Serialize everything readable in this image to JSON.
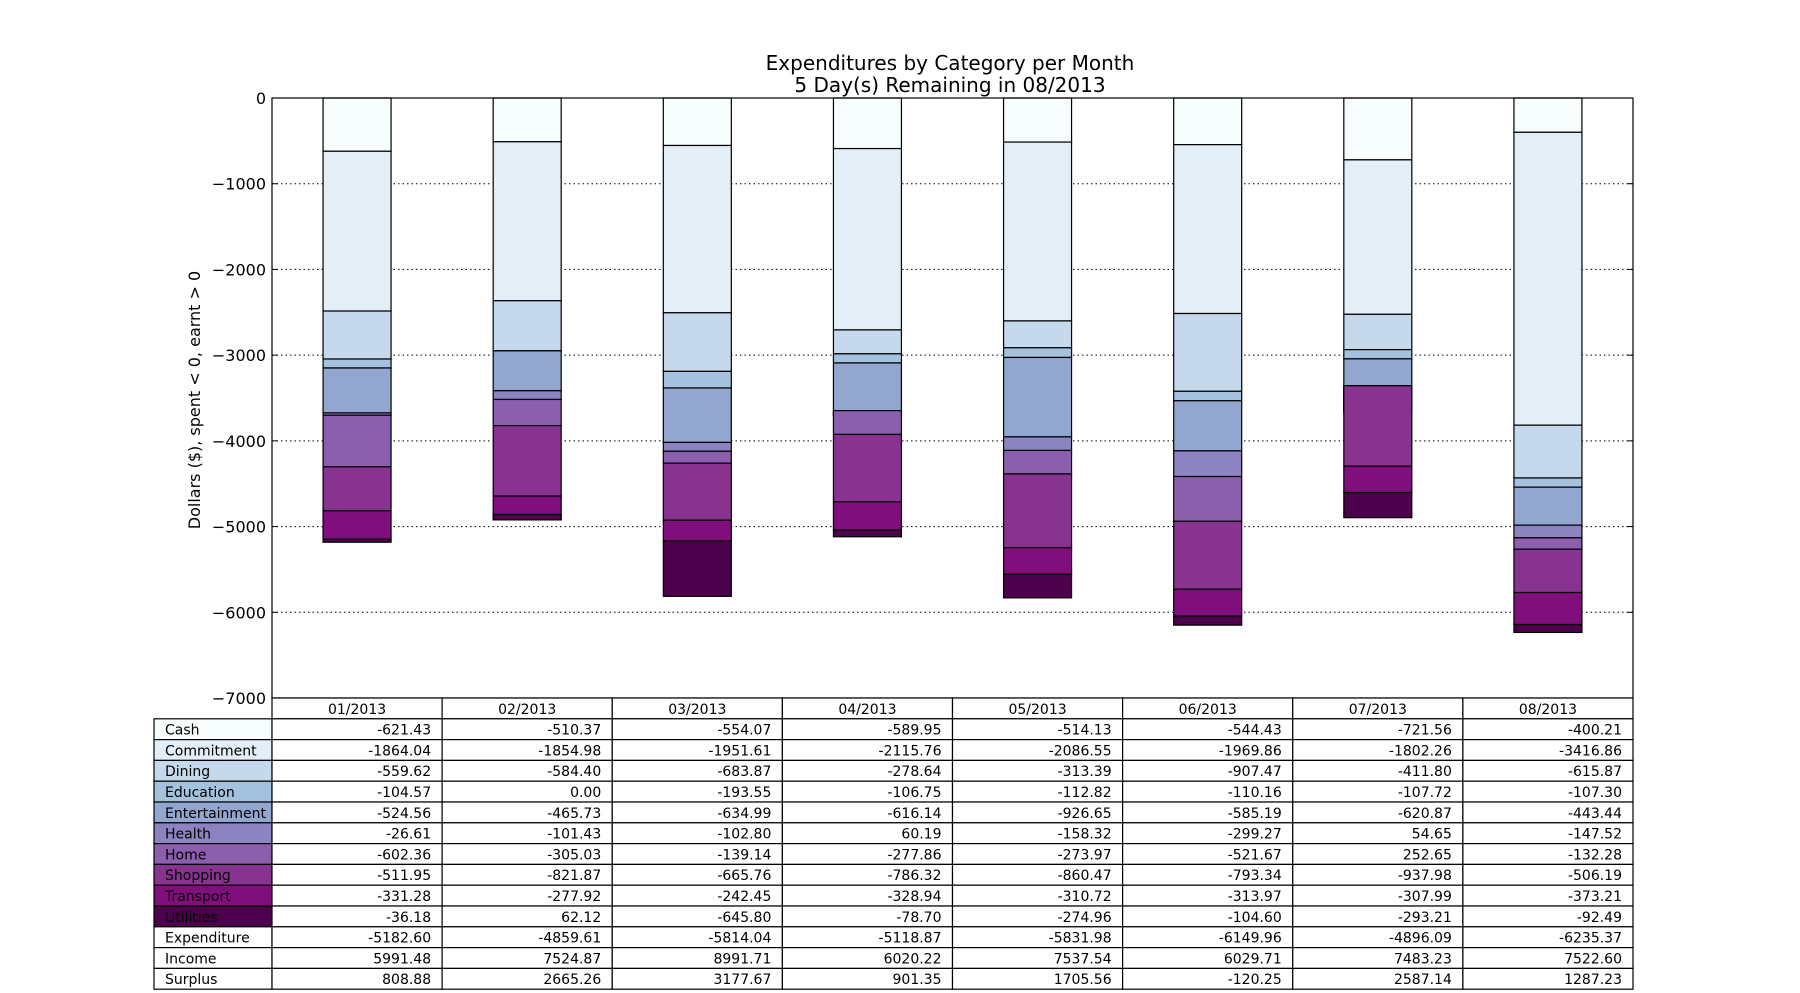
{
  "chart_data": {
    "type": "bar",
    "stacked": true,
    "title": "Expenditures by Category per Month",
    "subtitle": "5 Day(s) Remaining in 08/2013",
    "ylabel": "Dollars ($), spent < 0, earnt > 0",
    "xlabel": "",
    "ylim": [
      -7000,
      0
    ],
    "yticks": [
      0,
      -1000,
      -2000,
      -3000,
      -4000,
      -5000,
      -6000,
      -7000
    ],
    "ytick_labels": [
      "0",
      "−1000",
      "−2000",
      "−3000",
      "−4000",
      "−5000",
      "−6000",
      "−7000"
    ],
    "grid": "dotted-horizontal",
    "categories": [
      "01/2013",
      "02/2013",
      "03/2013",
      "04/2013",
      "05/2013",
      "06/2013",
      "07/2013",
      "08/2013"
    ],
    "series": [
      {
        "name": "Cash",
        "color": "#f7fcfd",
        "values": [
          -621.43,
          -510.37,
          -554.07,
          -589.95,
          -514.13,
          -544.43,
          -721.56,
          -400.21
        ],
        "labels": [
          "-621.43",
          "-510.37",
          "-554.07",
          "-589.95",
          "-514.13",
          "-544.43",
          "-721.56",
          "-400.21"
        ]
      },
      {
        "name": "Commitment",
        "color": "#e3eef6",
        "values": [
          -1864.04,
          -1854.98,
          -1951.61,
          -2115.76,
          -2086.55,
          -1969.86,
          -1802.26,
          -3416.86
        ],
        "labels": [
          "-1864.04",
          "-1854.98",
          "-1951.61",
          "-2115.76",
          "-2086.55",
          "-1969.86",
          "-1802.26",
          "-3416.86"
        ]
      },
      {
        "name": "Dining",
        "color": "#c6d8eb",
        "values": [
          -559.62,
          -584.4,
          -683.87,
          -278.64,
          -313.39,
          -907.47,
          -411.8,
          -615.87
        ],
        "labels": [
          "-559.62",
          "-584.40",
          "-683.87",
          "-278.64",
          "-313.39",
          "-907.47",
          "-411.80",
          "-615.87"
        ]
      },
      {
        "name": "Education",
        "color": "#a4c1dd",
        "values": [
          -104.57,
          0.0,
          -193.55,
          -106.75,
          -112.82,
          -110.16,
          -107.72,
          -107.3
        ],
        "labels": [
          "-104.57",
          "0.00",
          "-193.55",
          "-106.75",
          "-112.82",
          "-110.16",
          "-107.72",
          "-107.30"
        ]
      },
      {
        "name": "Entertainment",
        "color": "#92a6d0",
        "values": [
          -524.56,
          -465.73,
          -634.99,
          -616.14,
          -926.65,
          -585.19,
          -620.87,
          -443.44
        ],
        "labels": [
          "-524.56",
          "-465.73",
          "-634.99",
          "-616.14",
          "-926.65",
          "-585.19",
          "-620.87",
          "-443.44"
        ]
      },
      {
        "name": "Health",
        "color": "#8c84c0",
        "values": [
          -26.61,
          -101.43,
          -102.8,
          60.19,
          -158.32,
          -299.27,
          54.65,
          -147.52
        ],
        "labels": [
          "-26.61",
          "-101.43",
          "-102.80",
          "60.19",
          "-158.32",
          "-299.27",
          "54.65",
          "-147.52"
        ]
      },
      {
        "name": "Home",
        "color": "#8c5eae",
        "values": [
          -602.36,
          -305.03,
          -139.14,
          -277.86,
          -273.97,
          -521.67,
          252.65,
          -132.28
        ],
        "labels": [
          "-602.36",
          "-305.03",
          "-139.14",
          "-277.86",
          "-273.97",
          "-521.67",
          "252.65",
          "-132.28"
        ]
      },
      {
        "name": "Shopping",
        "color": "#88338f",
        "values": [
          -511.95,
          -821.87,
          -665.76,
          -786.32,
          -860.47,
          -793.34,
          -937.98,
          -506.19
        ],
        "labels": [
          "-511.95",
          "-821.87",
          "-665.76",
          "-786.32",
          "-860.47",
          "-793.34",
          "-937.98",
          "-506.19"
        ]
      },
      {
        "name": "Transport",
        "color": "#800e7c",
        "values": [
          -331.28,
          -277.92,
          -242.45,
          -328.94,
          -310.72,
          -313.97,
          -307.99,
          -373.21
        ],
        "labels": [
          "-331.28",
          "-277.92",
          "-242.45",
          "-328.94",
          "-310.72",
          "-313.97",
          "-307.99",
          "-373.21"
        ]
      },
      {
        "name": "Utilities",
        "color": "#4d004b",
        "values": [
          -36.18,
          62.12,
          -645.8,
          -78.7,
          -274.96,
          -104.6,
          -293.21,
          -92.49
        ],
        "labels": [
          "-36.18",
          "62.12",
          "-645.80",
          "-78.70",
          "-274.96",
          "-104.60",
          "-293.21",
          "-92.49"
        ]
      }
    ],
    "summary_rows": [
      {
        "name": "Expenditure",
        "labels": [
          "-5182.60",
          "-4859.61",
          "-5814.04",
          "-5118.87",
          "-5831.98",
          "-6149.96",
          "-4896.09",
          "-6235.37"
        ]
      },
      {
        "name": "Income",
        "labels": [
          "5991.48",
          "7524.87",
          "8991.71",
          "6020.22",
          "7537.54",
          "6029.71",
          "7483.23",
          "7522.60"
        ]
      },
      {
        "name": "Surplus",
        "labels": [
          "808.88",
          "2665.26",
          "3177.67",
          "901.35",
          "1705.56",
          "-120.25",
          "2587.14",
          "1287.23"
        ]
      }
    ]
  }
}
